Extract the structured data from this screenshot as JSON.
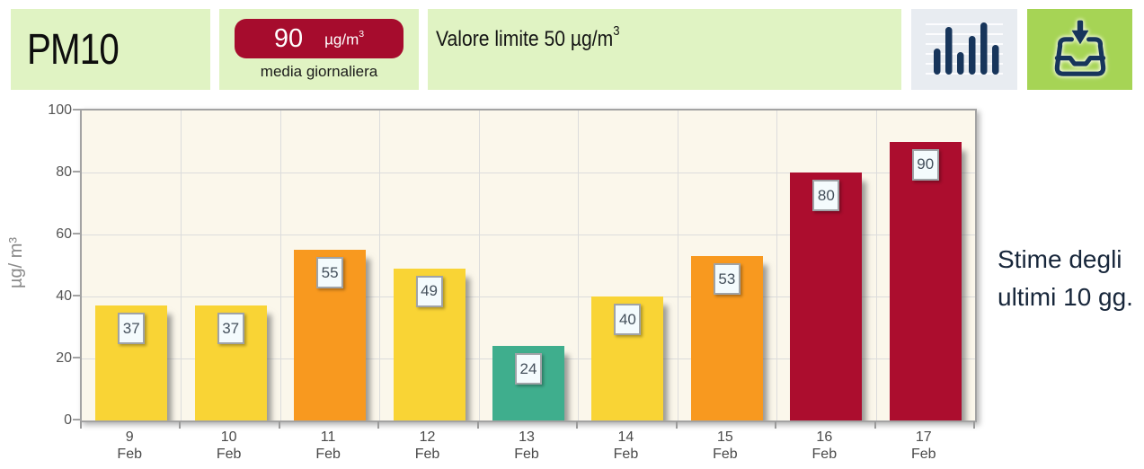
{
  "header": {
    "pollutant": "PM10",
    "daily_average": {
      "value": "90",
      "unit": "µg/m",
      "unit_sup": "3",
      "caption": "media giornaliera"
    },
    "limit": {
      "text": "Valore limite 50 µg/m",
      "sup": "3"
    }
  },
  "side_note": {
    "line1": "Stime degli",
    "line2": "ultimi 10 gg."
  },
  "palette": {
    "yellow": "#F9D435",
    "orange": "#F8991F",
    "teal": "#3FAE8D",
    "red": "#AC0D2E",
    "header_green": "#E0F3C3",
    "download_green": "#A6D455",
    "icon_box_bg": "#E8ECF1",
    "icon_navy": "#17355B",
    "plot_bg": "#FBF7EB"
  },
  "chart_data": {
    "type": "bar",
    "x": [
      {
        "day": "9",
        "month": "Feb"
      },
      {
        "day": "10",
        "month": "Feb"
      },
      {
        "day": "11",
        "month": "Feb"
      },
      {
        "day": "12",
        "month": "Feb"
      },
      {
        "day": "13",
        "month": "Feb"
      },
      {
        "day": "14",
        "month": "Feb"
      },
      {
        "day": "15",
        "month": "Feb"
      },
      {
        "day": "16",
        "month": "Feb"
      },
      {
        "day": "17",
        "month": "Feb"
      }
    ],
    "values": [
      37,
      37,
      55,
      49,
      24,
      40,
      53,
      80,
      90
    ],
    "levels": [
      "yellow",
      "yellow",
      "orange",
      "yellow",
      "teal",
      "yellow",
      "orange",
      "red",
      "red"
    ],
    "ylabel": "µg/ m³",
    "yticks": [
      0,
      20,
      40,
      60,
      80,
      100
    ],
    "ylim": [
      0,
      100
    ],
    "grid": true
  }
}
